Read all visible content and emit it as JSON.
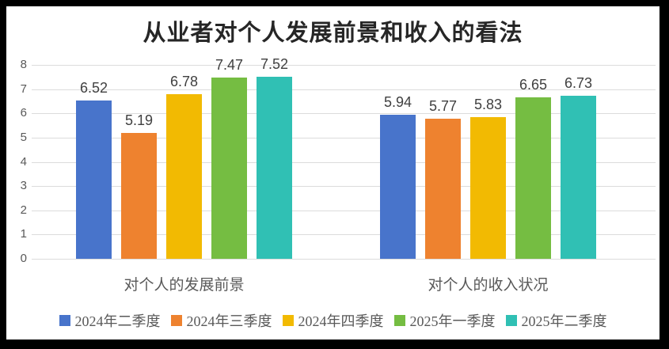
{
  "chart_data": {
    "type": "bar",
    "title": "从业者对个人发展前景和收入的看法",
    "categories": [
      "对个人的发展前景",
      "对个人的收入状况"
    ],
    "series": [
      {
        "name": "2024年二季度",
        "color": "#4874CB",
        "values": [
          6.52,
          5.94
        ]
      },
      {
        "name": "2024年三季度",
        "color": "#EE822F",
        "values": [
          5.19,
          5.77
        ]
      },
      {
        "name": "2024年四季度",
        "color": "#F2BA02",
        "values": [
          6.78,
          5.83
        ]
      },
      {
        "name": "2025年一季度",
        "color": "#75BD42",
        "values": [
          7.47,
          6.65
        ]
      },
      {
        "name": "2025年二季度",
        "color": "#30C0B4",
        "values": [
          7.52,
          6.73
        ]
      }
    ],
    "ylim": [
      0,
      8
    ],
    "yticks": [
      0,
      1,
      2,
      3,
      4,
      5,
      6,
      7,
      8
    ],
    "grid": true,
    "legend_position": "bottom",
    "data_labels": true,
    "colors": {
      "gridline": "#DCDCDC",
      "axis_text": "#595959",
      "data_label_text": "#404040",
      "title_text": "#262626",
      "background": "#FFFFFF",
      "frame_border": "#000000"
    }
  }
}
